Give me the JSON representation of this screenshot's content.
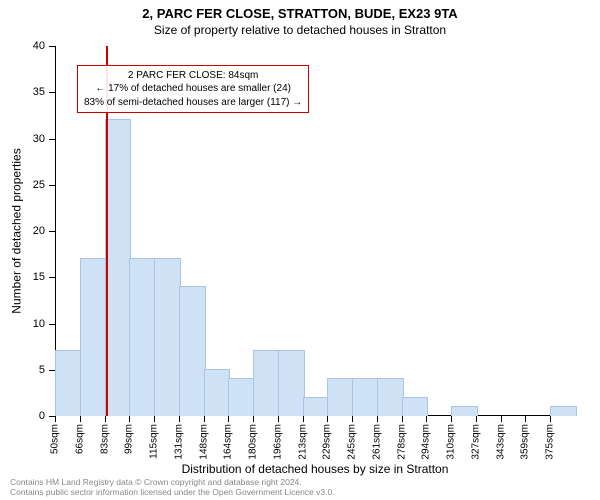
{
  "titles": {
    "line1": "2, PARC FER CLOSE, STRATTON, BUDE, EX23 9TA",
    "line2": "Size of property relative to detached houses in Stratton"
  },
  "axes": {
    "y_label": "Number of detached properties",
    "x_label": "Distribution of detached houses by size in Stratton"
  },
  "chart": {
    "type": "histogram",
    "ylim": [
      0,
      40
    ],
    "ytick_step": 5,
    "background_color": "#ffffff",
    "bar_fill": "#cfe1f5",
    "bar_stroke": "#a9c4e6",
    "marker_color": "#d00000",
    "bar_width_ratio": 1.0,
    "x_categories": [
      "50sqm",
      "66sqm",
      "83sqm",
      "99sqm",
      "115sqm",
      "131sqm",
      "148sqm",
      "164sqm",
      "180sqm",
      "196sqm",
      "213sqm",
      "229sqm",
      "245sqm",
      "261sqm",
      "278sqm",
      "294sqm",
      "310sqm",
      "327sqm",
      "343sqm",
      "359sqm",
      "375sqm"
    ],
    "values": [
      7,
      17,
      32,
      17,
      17,
      14,
      5,
      4,
      7,
      7,
      2,
      4,
      4,
      4,
      2,
      0,
      1,
      0,
      0,
      0,
      1
    ],
    "marker_value_sqm": 84,
    "marker_bin_index_fractional": 2.06
  },
  "annotation": {
    "line1": "2 PARC FER CLOSE: 84sqm",
    "line2": "← 17% of detached houses are smaller (24)",
    "line3": "83% of semi-detached houses are larger (117) →"
  },
  "footer": {
    "line1": "Contains HM Land Registry data © Crown copyright and database right 2024.",
    "line2": "Contains public sector information licensed under the Open Government Licence v3.0."
  }
}
